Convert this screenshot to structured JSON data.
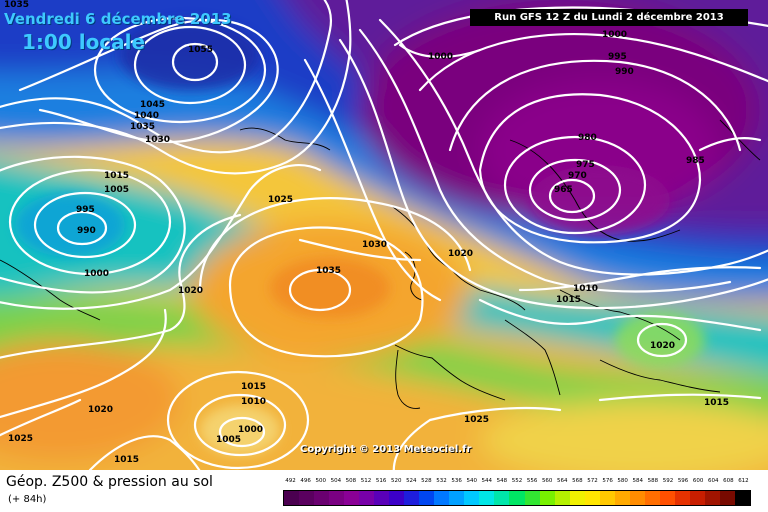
{
  "header": {
    "valid_date": "Vendredi 6 décembre 2013",
    "valid_time": "1:00 locale",
    "run_info": "Run GFS 12 Z du Lundi 2 décembre 2013"
  },
  "map": {
    "copyright": "Copyright © 2013 Meteociel.fr",
    "isobar_labels": [
      {
        "id": "isobar-1035-nw",
        "text": "1035"
      },
      {
        "id": "isobar-1055",
        "text": "1055"
      },
      {
        "id": "isobar-1045",
        "text": "1045"
      },
      {
        "id": "isobar-1040",
        "text": "1040"
      },
      {
        "id": "isobar-1035-w",
        "text": "1035"
      },
      {
        "id": "isobar-1030-w",
        "text": "1030"
      },
      {
        "id": "isobar-1015-w",
        "text": "1015"
      },
      {
        "id": "isobar-1005-w",
        "text": "1005"
      },
      {
        "id": "isobar-995-w",
        "text": "995"
      },
      {
        "id": "isobar-990-low",
        "text": "990"
      },
      {
        "id": "isobar-1000-w",
        "text": "1000"
      },
      {
        "id": "isobar-1025-c",
        "text": "1025"
      },
      {
        "id": "isobar-1020-c",
        "text": "1020"
      },
      {
        "id": "isobar-1035-high",
        "text": "1035"
      },
      {
        "id": "isobar-1030-c",
        "text": "1030"
      },
      {
        "id": "isobar-1020-n",
        "text": "1020"
      },
      {
        "id": "isobar-1000-n",
        "text": "1000"
      },
      {
        "id": "isobar-1000-ne",
        "text": "1000"
      },
      {
        "id": "isobar-995-ne",
        "text": "995"
      },
      {
        "id": "isobar-990-ne",
        "text": "990"
      },
      {
        "id": "isobar-980",
        "text": "980"
      },
      {
        "id": "isobar-975",
        "text": "975"
      },
      {
        "id": "isobar-970",
        "text": "970"
      },
      {
        "id": "isobar-965-low",
        "text": "965"
      },
      {
        "id": "isobar-985",
        "text": "985"
      },
      {
        "id": "isobar-1010-e",
        "text": "1010"
      },
      {
        "id": "isobar-1015-e",
        "text": "1015"
      },
      {
        "id": "isobar-1020-e",
        "text": "1020"
      },
      {
        "id": "isobar-1015-se",
        "text": "1015"
      },
      {
        "id": "isobar-1025-s",
        "text": "1025"
      },
      {
        "id": "isobar-1015-sw",
        "text": "1015"
      },
      {
        "id": "isobar-1010-sw",
        "text": "1010"
      },
      {
        "id": "isobar-1000-sw",
        "text": "1000"
      },
      {
        "id": "isobar-1005-sw",
        "text": "1005"
      },
      {
        "id": "isobar-1020-sw",
        "text": "1020"
      },
      {
        "id": "isobar-1025-sw",
        "text": "1025"
      },
      {
        "id": "isobar-1015-bottom",
        "text": "1015"
      }
    ]
  },
  "footer": {
    "title": "Géop. Z500 & pression au sol",
    "subtitle": "(+ 84h)",
    "scale_values": [
      "492",
      "496",
      "500",
      "504",
      "508",
      "512",
      "516",
      "520",
      "524",
      "528",
      "532",
      "536",
      "540",
      "544",
      "548",
      "552",
      "556",
      "560",
      "564",
      "568",
      "572",
      "576",
      "580",
      "584",
      "588",
      "592",
      "596",
      "600",
      "604",
      "608",
      "612"
    ],
    "scale_colors": [
      "#4b0050",
      "#5a005f",
      "#6a0070",
      "#7a0082",
      "#8a0096",
      "#7800a8",
      "#5a00b8",
      "#3c00c8",
      "#1e1edc",
      "#0046f0",
      "#0078ff",
      "#00a0ff",
      "#00c8ff",
      "#00e6e6",
      "#00e6aa",
      "#00e664",
      "#32e632",
      "#78f000",
      "#b4f000",
      "#f0f000",
      "#ffe600",
      "#ffc800",
      "#ffaa00",
      "#ff8c00",
      "#ff6e00",
      "#ff5000",
      "#e63200",
      "#c81e00",
      "#a01400",
      "#780a00",
      "#000000"
    ]
  }
}
